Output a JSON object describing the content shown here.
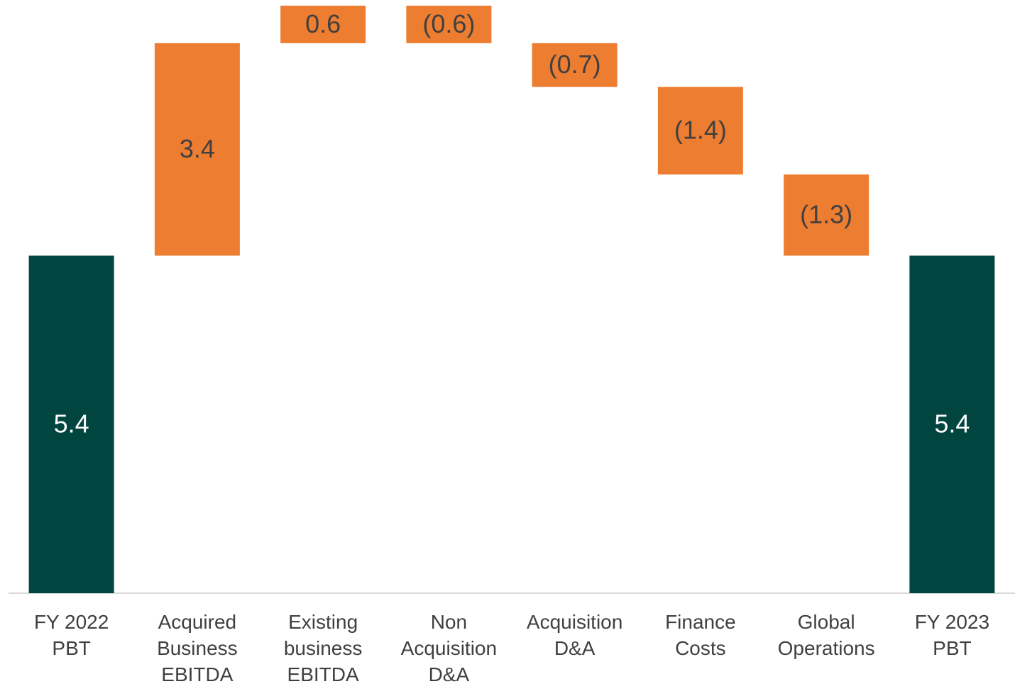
{
  "chart_data": {
    "type": "waterfall",
    "categories": [
      "FY 2022\nPBT",
      "Acquired\nBusiness\nEBITDA",
      "Existing\nbusiness\nEBITDA",
      "Non\nAcquisition\nD&A",
      "Acquisition\nD&A",
      "Finance\nCosts",
      "Global\nOperations",
      "FY 2023\nPBT"
    ],
    "values": [
      5.4,
      3.4,
      0.6,
      -0.6,
      -0.7,
      -1.4,
      -1.3,
      5.4
    ],
    "value_labels": [
      "5.4",
      "3.4",
      "0.6",
      "(0.6)",
      "(0.7)",
      "(1.4)",
      "(1.3)",
      "5.4"
    ],
    "measures": [
      "absolute",
      "relative",
      "relative",
      "relative",
      "relative",
      "relative",
      "relative",
      "absolute"
    ],
    "total_color": "#00453f",
    "delta_color": "#ed7d31",
    "ylim": [
      0,
      9.4
    ]
  }
}
